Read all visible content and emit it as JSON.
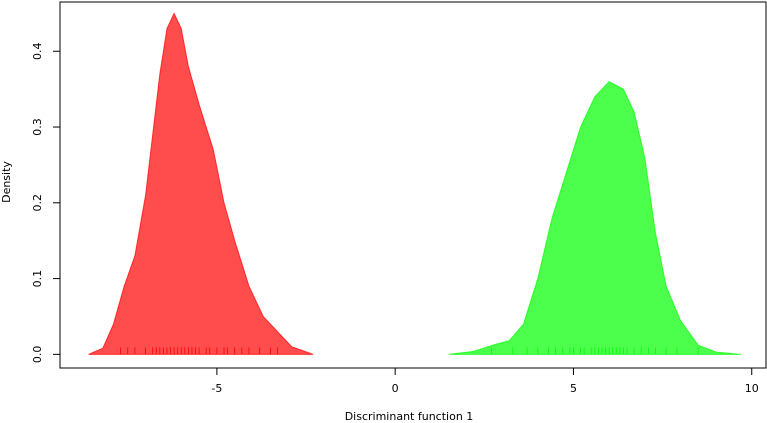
{
  "chart_data": {
    "type": "density",
    "xlabel": "Discriminant function 1",
    "ylabel": "Density",
    "xlim": [
      -9.4,
      10.4
    ],
    "ylim": [
      -0.018,
      0.465
    ],
    "xticks": [
      -5,
      0,
      5,
      10
    ],
    "yticks": [
      {
        "value": 0,
        "label": "0.0"
      },
      0.1,
      0.2,
      0.3,
      0.4
    ],
    "series": [
      {
        "color": "#ff0000",
        "x": [
          -8.6,
          -8.2,
          -7.9,
          -7.6,
          -7.3,
          -7.0,
          -6.8,
          -6.6,
          -6.4,
          -6.2,
          -6.0,
          -5.8,
          -5.5,
          -5.1,
          -4.8,
          -4.5,
          -4.1,
          -3.7,
          -3.3,
          -2.9,
          -2.3
        ],
        "values": [
          0,
          0.008,
          0.04,
          0.09,
          0.13,
          0.21,
          0.29,
          0.37,
          0.43,
          0.45,
          0.43,
          0.38,
          0.33,
          0.27,
          0.2,
          0.15,
          0.09,
          0.05,
          0.03,
          0.01,
          0
        ],
        "rug": [
          -7.7,
          -7.5,
          -7.3,
          -7.0,
          -6.8,
          -6.7,
          -6.6,
          -6.5,
          -6.4,
          -6.3,
          -6.2,
          -6.1,
          -6.0,
          -5.9,
          -5.8,
          -5.7,
          -5.6,
          -5.5,
          -5.3,
          -5.2,
          -5.0,
          -4.8,
          -4.7,
          -4.5,
          -4.3,
          -4.1,
          -3.8,
          -3.5,
          -3.3
        ]
      },
      {
        "color": "#00ff00",
        "x": [
          1.5,
          2.2,
          2.8,
          3.2,
          3.6,
          4.0,
          4.4,
          4.8,
          5.2,
          5.6,
          6.0,
          6.4,
          6.7,
          7.0,
          7.3,
          7.6,
          8.0,
          8.5,
          9.0,
          9.7
        ],
        "values": [
          0,
          0.004,
          0.013,
          0.018,
          0.04,
          0.1,
          0.18,
          0.24,
          0.3,
          0.34,
          0.36,
          0.35,
          0.32,
          0.26,
          0.16,
          0.09,
          0.045,
          0.012,
          0.003,
          0
        ],
        "rug": [
          2.7,
          3.3,
          3.7,
          4.0,
          4.3,
          4.5,
          4.7,
          4.9,
          5.0,
          5.2,
          5.3,
          5.5,
          5.6,
          5.7,
          5.8,
          5.9,
          6.0,
          6.1,
          6.2,
          6.3,
          6.4,
          6.5,
          6.7,
          6.9,
          7.1,
          7.3,
          7.6,
          7.9,
          8.5
        ]
      }
    ]
  }
}
